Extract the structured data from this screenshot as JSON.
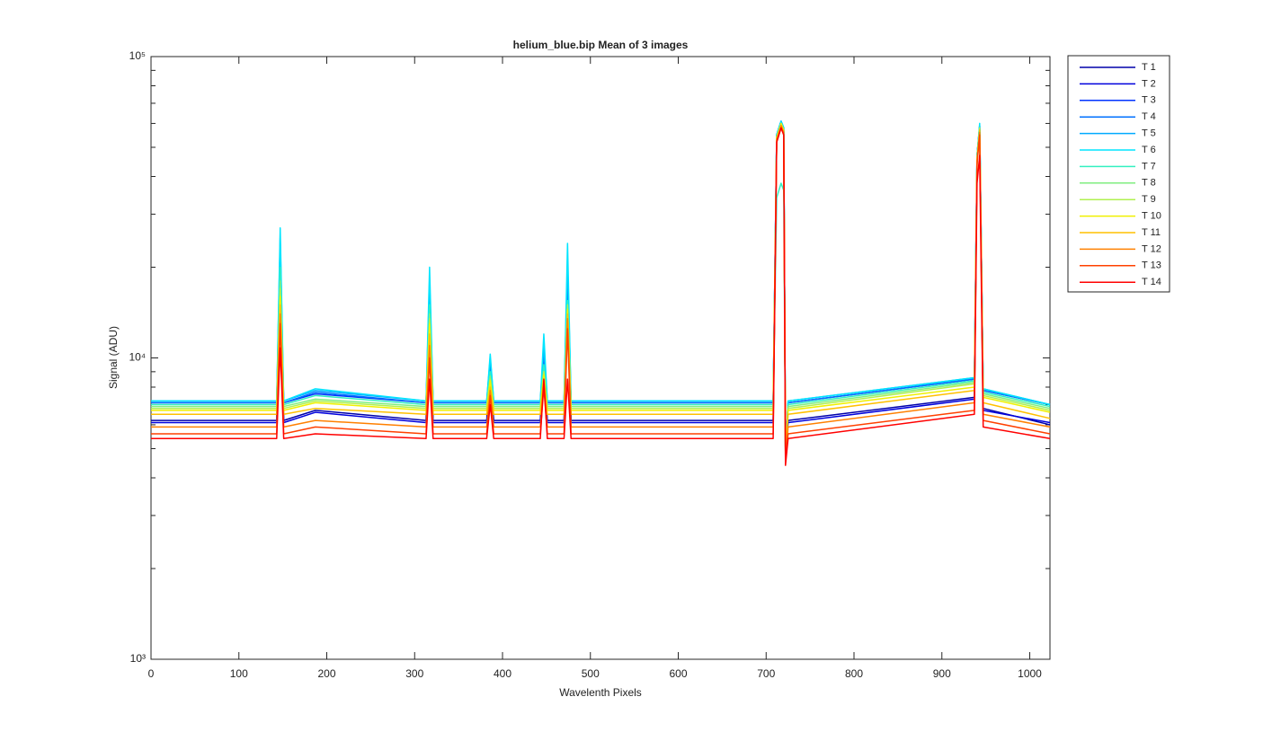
{
  "chart_data": {
    "type": "line",
    "title": "helium_blue.bip  Mean of 3 images",
    "x_label": "Wavelenth Pixels",
    "y_label": "Signal (ADU)",
    "log_y": true,
    "legend": "outside-right",
    "grid": false,
    "xlim": [
      0,
      1023
    ],
    "xticks": [
      0,
      100,
      200,
      300,
      400,
      500,
      600,
      700,
      800,
      900,
      1000
    ],
    "ylim": [
      1000,
      100000
    ],
    "yticks": [
      {
        "value": 1000,
        "label": "10³"
      },
      {
        "value": 10000,
        "label": "10⁴"
      },
      {
        "value": 100000,
        "label": "10⁵"
      }
    ],
    "yminorticks": [
      2000,
      3000,
      4000,
      5000,
      6000,
      7000,
      8000,
      9000,
      20000,
      30000,
      40000,
      50000,
      60000,
      70000,
      80000,
      90000
    ],
    "x": [
      0,
      143,
      147,
      151,
      187,
      313,
      317,
      321,
      382,
      386,
      390,
      443,
      447,
      451,
      470,
      474,
      478,
      708,
      712,
      717,
      720,
      722,
      725,
      937,
      940,
      943,
      947,
      1023
    ],
    "series": [
      {
        "name": "T 1",
        "color": "#0000aa",
        "values": [
          6200,
          6200,
          20000,
          6200,
          6700,
          6200,
          15000,
          6200,
          6200,
          9000,
          6200,
          6200,
          9500,
          6200,
          6200,
          15500,
          6200,
          6200,
          54000,
          60000,
          57000,
          4900,
          6200,
          7400,
          46000,
          58000,
          6800,
          6000
        ]
      },
      {
        "name": "T 2",
        "color": "#0000dd",
        "values": [
          6100,
          6100,
          20000,
          6100,
          6600,
          6100,
          15000,
          6100,
          6100,
          9000,
          6100,
          6100,
          9500,
          6100,
          6100,
          15500,
          6100,
          6100,
          54000,
          60000,
          57000,
          4900,
          6100,
          7300,
          46000,
          58000,
          6700,
          6100
        ]
      },
      {
        "name": "T 3",
        "color": "#0033ff",
        "values": [
          7100,
          7100,
          21000,
          7100,
          7600,
          7100,
          15500,
          7100,
          7100,
          9200,
          7100,
          7100,
          10000,
          7100,
          7100,
          16000,
          7100,
          7100,
          55000,
          61000,
          58000,
          4800,
          7100,
          8500,
          47000,
          59000,
          7800,
          7000
        ]
      },
      {
        "name": "T 4",
        "color": "#0070ff",
        "values": [
          7100,
          7100,
          22000,
          7100,
          7700,
          7100,
          16000,
          7100,
          7100,
          9500,
          7100,
          7100,
          10500,
          7100,
          7100,
          17000,
          7100,
          7100,
          55000,
          61000,
          58000,
          4800,
          7100,
          8500,
          47000,
          59000,
          7800,
          7000
        ]
      },
      {
        "name": "T 5",
        "color": "#00aaff",
        "values": [
          7200,
          7200,
          25000,
          7200,
          7800,
          7200,
          18000,
          7200,
          7200,
          10000,
          7200,
          7200,
          11000,
          7200,
          7200,
          21000,
          7200,
          7200,
          55000,
          61000,
          58000,
          4800,
          7200,
          8600,
          47000,
          59000,
          7900,
          7000
        ]
      },
      {
        "name": "T 6",
        "color": "#00e5ff",
        "values": [
          7200,
          7200,
          27000,
          7200,
          7900,
          7200,
          20000,
          7200,
          7200,
          10300,
          7200,
          7200,
          12000,
          7200,
          7200,
          24000,
          7200,
          7200,
          55000,
          61000,
          58000,
          4800,
          7200,
          8600,
          47000,
          60000,
          7900,
          7000
        ]
      },
      {
        "name": "T 7",
        "color": "#33f0c0",
        "values": [
          7000,
          7000,
          20000,
          7000,
          7500,
          7000,
          15000,
          7000,
          7000,
          9000,
          7000,
          7000,
          9500,
          7000,
          7000,
          15500,
          7000,
          7000,
          34000,
          38000,
          36000,
          4800,
          7000,
          8400,
          46000,
          58000,
          7700,
          6900
        ]
      },
      {
        "name": "T 8",
        "color": "#80ee80",
        "values": [
          6900,
          6900,
          18000,
          6900,
          7300,
          6900,
          14000,
          6900,
          6900,
          8700,
          6900,
          6900,
          9000,
          6900,
          6900,
          15000,
          6900,
          6900,
          54000,
          60000,
          57000,
          4800,
          6900,
          8300,
          46000,
          58000,
          7600,
          6800
        ]
      },
      {
        "name": "T 9",
        "color": "#b0f050",
        "values": [
          6800,
          6800,
          17000,
          6800,
          7200,
          6800,
          13500,
          6800,
          6800,
          8500,
          6800,
          6800,
          9000,
          6800,
          6800,
          15000,
          6800,
          6800,
          54000,
          60000,
          57000,
          4800,
          6800,
          8200,
          46000,
          58000,
          7500,
          6700
        ]
      },
      {
        "name": "T 10",
        "color": "#f0f000",
        "values": [
          6700,
          6700,
          16000,
          6700,
          7100,
          6700,
          13000,
          6700,
          6700,
          8400,
          6700,
          6700,
          8800,
          6700,
          6700,
          14500,
          6700,
          6700,
          54000,
          60000,
          57000,
          4800,
          6700,
          8000,
          46000,
          57000,
          7400,
          6600
        ]
      },
      {
        "name": "T 11",
        "color": "#ffc000",
        "values": [
          6500,
          6500,
          15000,
          6500,
          6800,
          6500,
          12000,
          6500,
          6500,
          8000,
          6500,
          6500,
          8500,
          6500,
          6500,
          14000,
          6500,
          6500,
          53000,
          59000,
          56000,
          4700,
          6500,
          7800,
          45000,
          57000,
          7100,
          6300
        ]
      },
      {
        "name": "T 12",
        "color": "#ff8000",
        "values": [
          5900,
          5900,
          14000,
          5900,
          6200,
          5900,
          11000,
          5900,
          5900,
          7800,
          5900,
          5900,
          8200,
          5900,
          5900,
          13500,
          5900,
          5900,
          53000,
          59000,
          56000,
          4600,
          5900,
          7100,
          45000,
          56000,
          6500,
          5900
        ]
      },
      {
        "name": "T 13",
        "color": "#ff4000",
        "values": [
          5600,
          5600,
          13000,
          5600,
          5900,
          5600,
          10000,
          5600,
          5600,
          7500,
          5600,
          5600,
          8000,
          5600,
          5600,
          12500,
          5600,
          5600,
          52000,
          58000,
          55000,
          4500,
          5600,
          6700,
          44000,
          55000,
          6200,
          5600
        ]
      },
      {
        "name": "T 14",
        "color": "#ff0000",
        "values": [
          5400,
          5400,
          10800,
          5400,
          5600,
          5400,
          8500,
          5400,
          5400,
          7000,
          5400,
          5400,
          8500,
          5400,
          5400,
          8500,
          5400,
          5400,
          52000,
          58000,
          55000,
          4400,
          5400,
          6500,
          38000,
          47000,
          5900,
          5400
        ]
      }
    ]
  }
}
